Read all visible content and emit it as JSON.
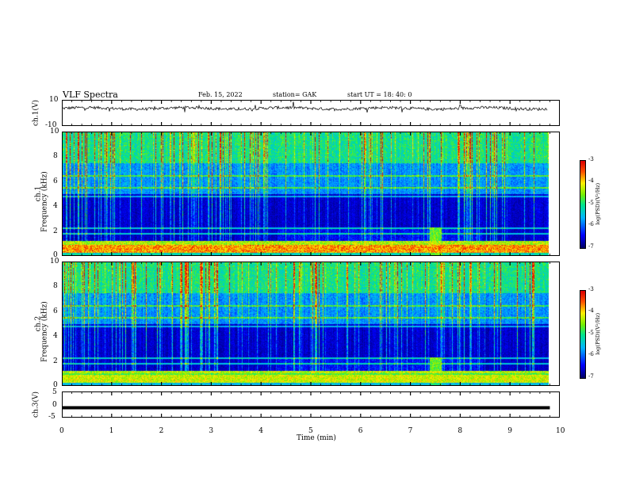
{
  "header": {
    "title": "VLF Spectra",
    "date": "Feb. 15, 2022",
    "station": "station= GAK",
    "start": "start  UT  =   18: 40: 0"
  },
  "chart_data": [
    {
      "type": "line",
      "panel": "ch1-waveform",
      "ylabel": "ch.1(V)",
      "ylim": [
        -10,
        10
      ],
      "yticks": [
        "10",
        "-10"
      ],
      "xlim": [
        0,
        10
      ],
      "description_values": "noisy waveform near +3.5 V"
    },
    {
      "type": "heatmap",
      "panel": "ch1-spectrogram",
      "ylabel": "ch.1\nFrequency (kHz)",
      "ylabel_line1": "ch.1",
      "ylabel_line2": "Frequency (kHz)",
      "ylim": [
        0,
        10
      ],
      "yticks": [
        "0",
        "2",
        "4",
        "6",
        "8",
        "10"
      ],
      "xlim": [
        0,
        10
      ],
      "colorbar": {
        "label": "log(PSD)(V²/Hz)",
        "ticks": [
          "-3",
          "-4",
          "-5",
          "-6",
          "-7"
        ],
        "range": [
          -7,
          -3
        ]
      }
    },
    {
      "type": "heatmap",
      "panel": "ch2-spectrogram",
      "ylabel_line1": "ch.2",
      "ylabel_line2": "Frequency (kHz)",
      "ylim": [
        0,
        10
      ],
      "yticks": [
        "0",
        "2",
        "4",
        "6",
        "8",
        "10"
      ],
      "xlim": [
        0,
        10
      ],
      "colorbar": {
        "label": "log(PSD)(V²/Hz)",
        "ticks": [
          "-3",
          "-4",
          "-5",
          "-6",
          "-7"
        ],
        "range": [
          -7,
          -3
        ]
      }
    },
    {
      "type": "line",
      "panel": "ch3-waveform",
      "ylabel": "ch.3(V)",
      "ylim": [
        -5,
        5
      ],
      "yticks": [
        "5",
        "0",
        "-5"
      ],
      "xlim": [
        0,
        10
      ],
      "x": [
        0,
        9.8
      ],
      "y": [
        -1.2,
        -1.2
      ]
    }
  ],
  "xaxis": {
    "label": "Time (min)",
    "ticks": [
      "0",
      "1",
      "2",
      "3",
      "4",
      "5",
      "6",
      "7",
      "8",
      "9",
      "10"
    ]
  }
}
